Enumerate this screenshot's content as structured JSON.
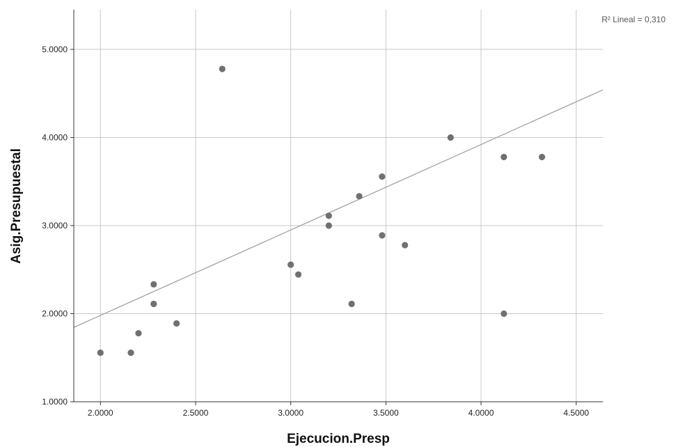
{
  "chart_data": {
    "type": "scatter",
    "xlabel": "Ejecucion.Presp",
    "ylabel": "Asig.Presupuestal",
    "xlim": [
      1.86,
      4.64
    ],
    "ylim": [
      1.0,
      5.45
    ],
    "x_ticks": [
      "2.0000",
      "2.5000",
      "3.0000",
      "3.5000",
      "4.0000",
      "4.5000"
    ],
    "y_ticks": [
      "1.0000",
      "2.0000",
      "3.0000",
      "4.0000",
      "5.0000"
    ],
    "x_tick_values": [
      2.0,
      2.5,
      3.0,
      3.5,
      4.0,
      4.5
    ],
    "y_tick_values": [
      1.0,
      2.0,
      3.0,
      4.0,
      5.0
    ],
    "grid": true,
    "annotation": "R² Lineal = 0,310",
    "fit_line": {
      "intercept": 0.04,
      "slope": 0.97
    },
    "colors": {
      "point": "#707070",
      "fit_line": "#9a9a9a",
      "grid": "#c8c8c8",
      "axis": "#333333"
    },
    "points": [
      {
        "x": 2.0,
        "y": 1.556
      },
      {
        "x": 2.16,
        "y": 1.556
      },
      {
        "x": 2.2,
        "y": 1.778
      },
      {
        "x": 2.28,
        "y": 2.111
      },
      {
        "x": 2.28,
        "y": 2.333
      },
      {
        "x": 2.4,
        "y": 1.889
      },
      {
        "x": 2.64,
        "y": 4.778
      },
      {
        "x": 3.0,
        "y": 2.556
      },
      {
        "x": 3.04,
        "y": 2.444
      },
      {
        "x": 3.2,
        "y": 3.0
      },
      {
        "x": 3.2,
        "y": 3.111
      },
      {
        "x": 3.32,
        "y": 2.111
      },
      {
        "x": 3.36,
        "y": 3.333
      },
      {
        "x": 3.48,
        "y": 2.889
      },
      {
        "x": 3.48,
        "y": 3.556
      },
      {
        "x": 3.6,
        "y": 2.778
      },
      {
        "x": 3.84,
        "y": 4.0
      },
      {
        "x": 4.12,
        "y": 2.0
      },
      {
        "x": 4.12,
        "y": 3.778
      },
      {
        "x": 4.32,
        "y": 3.778
      }
    ]
  }
}
